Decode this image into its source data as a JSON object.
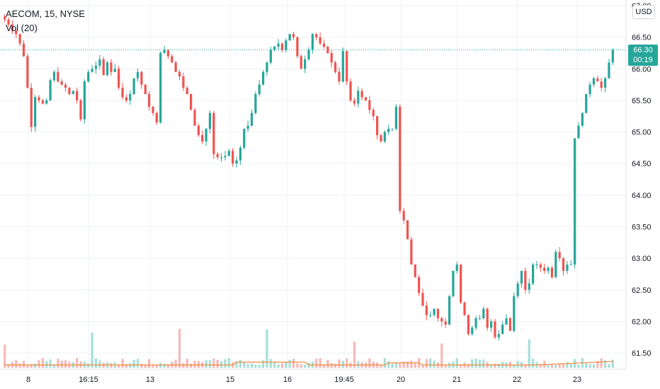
{
  "symbol_title": "AECOM, 15, NYSE",
  "vol_label": "Vol (20)",
  "currency_button": "USD",
  "last_price": "66.30",
  "countdown": "00:19",
  "colors": {
    "up": "#26a69a",
    "down": "#ef5350",
    "ma": "#ef8c3d",
    "vol_up": "#a6dfd9",
    "vol_down": "#f7b8b6",
    "grid": "#eef1f4"
  },
  "chart_data": {
    "type": "candlestick",
    "ylim": [
      61.4,
      67.0
    ],
    "yticks": [
      61.5,
      62.0,
      62.5,
      63.0,
      63.5,
      64.0,
      64.5,
      65.0,
      65.5,
      66.0,
      66.5,
      67.0
    ],
    "ytick_labels": [
      "61.50",
      "62.00",
      "62.50",
      "63.00",
      "63.50",
      "64.00",
      "64.50",
      "65.00",
      "65.50",
      "66.00",
      "66.50",
      "67.00"
    ],
    "xtick_labels": [
      "8",
      "16:15",
      "13",
      "15",
      "16",
      "19:45",
      "20",
      "21",
      "22",
      "23"
    ],
    "last_price_value": 66.3,
    "candles_close": [
      66.78,
      66.7,
      66.6,
      66.55,
      66.4,
      66.2,
      65.7,
      65.08,
      65.55,
      65.5,
      65.45,
      65.5,
      65.82,
      65.95,
      65.8,
      65.75,
      65.7,
      65.6,
      65.65,
      65.5,
      65.2,
      65.8,
      65.95,
      66.0,
      66.05,
      66.15,
      65.9,
      66.1,
      65.95,
      66.0,
      65.7,
      65.55,
      65.5,
      65.6,
      65.85,
      65.95,
      65.75,
      65.6,
      65.4,
      65.3,
      65.15,
      66.25,
      66.3,
      66.2,
      66.1,
      65.95,
      65.88,
      65.7,
      65.6,
      65.35,
      65.1,
      64.95,
      64.85,
      65.05,
      65.3,
      64.65,
      64.6,
      64.6,
      64.62,
      64.7,
      64.5,
      64.55,
      64.75,
      65.05,
      65.1,
      65.3,
      65.6,
      65.75,
      65.95,
      66.1,
      66.3,
      66.35,
      66.4,
      66.3,
      66.45,
      66.55,
      66.5,
      66.2,
      66.0,
      66.15,
      66.3,
      66.55,
      66.5,
      66.4,
      66.35,
      66.25,
      66.1,
      65.95,
      65.8,
      66.28,
      65.8,
      65.5,
      65.45,
      65.65,
      65.55,
      65.5,
      65.35,
      65.25,
      64.95,
      64.85,
      65.0,
      65.05,
      65.05,
      65.4,
      63.75,
      63.6,
      63.3,
      62.9,
      62.7,
      62.45,
      62.25,
      62.1,
      62.1,
      62.2,
      62.05,
      62.0,
      61.95,
      62.4,
      62.8,
      62.9,
      62.3,
      62.1,
      61.8,
      61.9,
      62.05,
      62.05,
      62.2,
      61.9,
      62.0,
      61.75,
      61.8,
      61.95,
      62.05,
      61.85,
      62.4,
      62.6,
      62.8,
      62.5,
      62.6,
      62.9,
      62.9,
      62.85,
      62.8,
      62.85,
      62.7,
      63.1,
      63.0,
      62.8,
      62.9,
      62.9,
      64.9,
      65.1,
      65.3,
      65.6,
      65.75,
      65.85,
      65.8,
      65.7,
      65.85,
      66.1,
      66.3
    ]
  }
}
